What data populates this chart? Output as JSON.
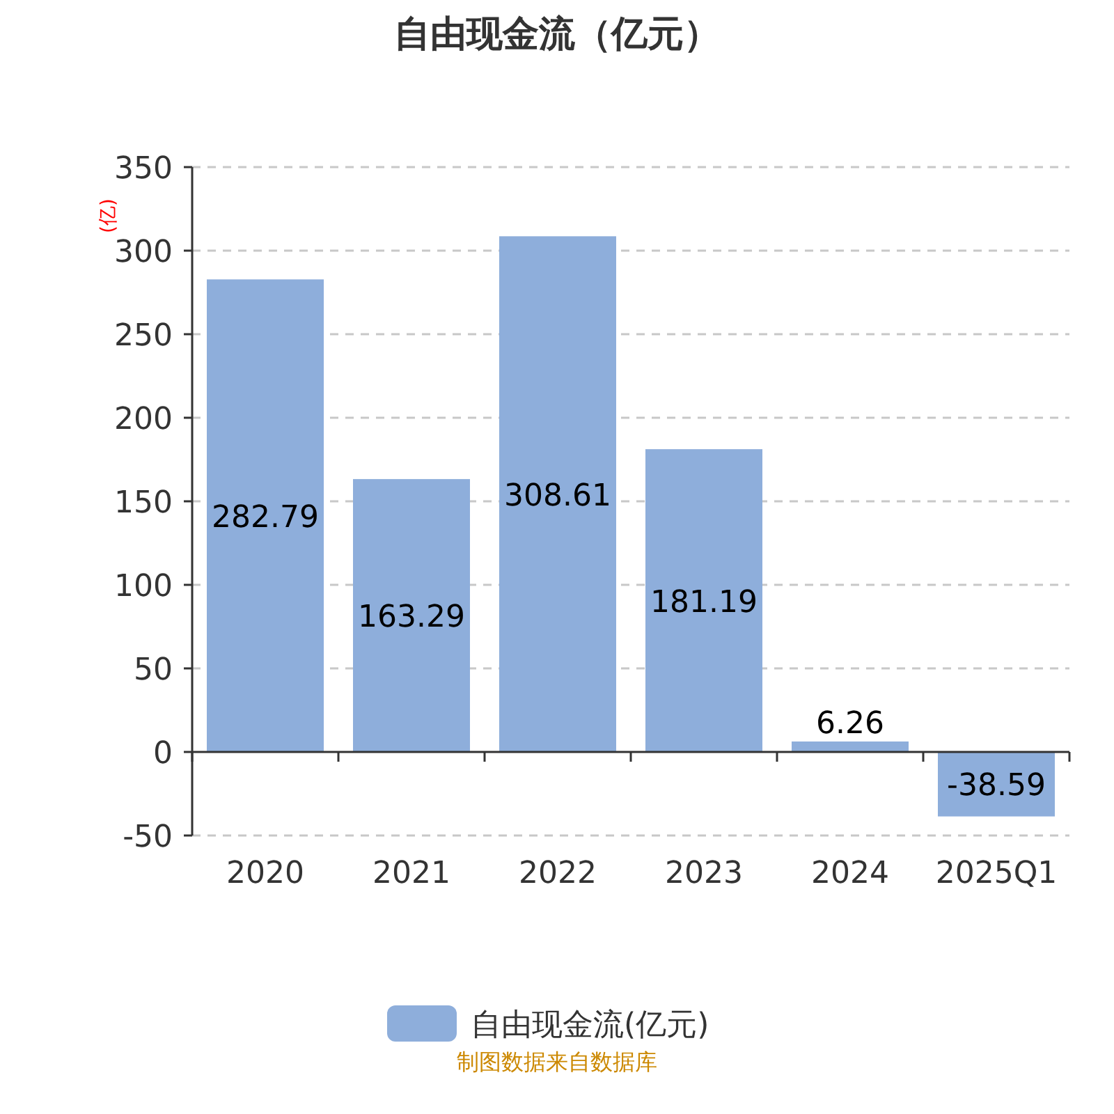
{
  "chart_data": {
    "type": "bar",
    "title": "自由现金流（亿元）",
    "ylabel": "(亿)",
    "categories": [
      "2020",
      "2021",
      "2022",
      "2023",
      "2024",
      "2025Q1"
    ],
    "series": [
      {
        "name": "自由现金流(亿元)",
        "color": "#8eaedb",
        "values": [
          282.79,
          163.29,
          308.61,
          181.19,
          6.26,
          -38.59
        ]
      }
    ],
    "ylim": [
      -50,
      350
    ],
    "yticks": [
      -50,
      0,
      50,
      100,
      150,
      200,
      250,
      300,
      350
    ],
    "grid": "y",
    "legend": "bottom",
    "data_labels": true,
    "annotations": [
      "制图数据来自数据库"
    ]
  }
}
